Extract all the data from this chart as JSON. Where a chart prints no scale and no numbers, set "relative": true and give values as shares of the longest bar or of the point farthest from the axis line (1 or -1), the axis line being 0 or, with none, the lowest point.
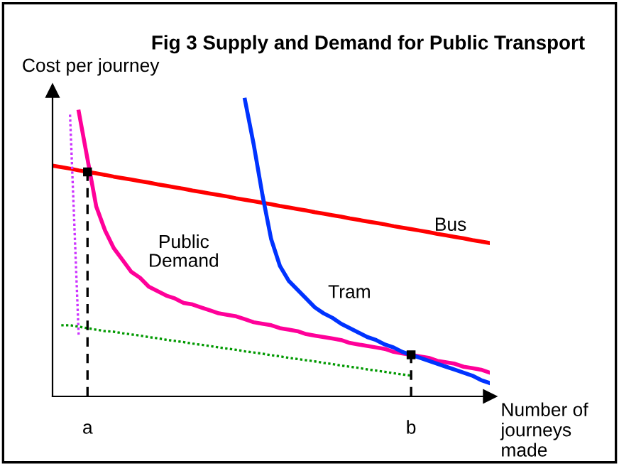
{
  "chart_data": {
    "type": "line",
    "title": "Fig 3 Supply and Demand for Public Transport",
    "xlabel": "Number of journeys made",
    "ylabel": "Cost per journey",
    "relative": true,
    "categories": [
      null,
      null,
      null,
      null,
      "a",
      null,
      null,
      null,
      null,
      null,
      null,
      null,
      null,
      null,
      null,
      null,
      null,
      null,
      null,
      null,
      null,
      null,
      null,
      null,
      null,
      null,
      null,
      null,
      null,
      null,
      null,
      null,
      null,
      null,
      null,
      null,
      null,
      null,
      null,
      null,
      null,
      "b",
      null,
      null,
      null,
      null,
      null,
      null,
      null,
      null,
      null
    ],
    "legend": false,
    "marker": "none",
    "series": [
      {
        "name": "Bus",
        "color": "#ff0000",
        "values": [
          0.778,
          0.773,
          0.768,
          0.762,
          0.757,
          0.752,
          0.747,
          0.741,
          0.736,
          0.731,
          0.726,
          0.721,
          0.715,
          0.71,
          0.705,
          0.7,
          0.694,
          0.689,
          0.684,
          0.679,
          0.674,
          0.668,
          0.663,
          0.658,
          0.653,
          0.648,
          0.642,
          0.637,
          0.632,
          0.627,
          0.621,
          0.616,
          0.611,
          0.606,
          0.6,
          0.595,
          0.59,
          0.585,
          0.58,
          0.574,
          0.569,
          0.564,
          0.559,
          0.554,
          0.548,
          0.543,
          0.538,
          0.533,
          0.527,
          0.522,
          0.517
        ]
      },
      {
        "name": "Public Demand",
        "color": "#ff0099",
        "values": [
          null,
          null,
          null,
          0.96,
          0.8,
          0.64,
          0.56,
          0.5,
          0.46,
          0.42,
          0.4,
          0.37,
          0.355,
          0.34,
          0.33,
          0.315,
          0.31,
          0.3,
          0.29,
          0.28,
          0.275,
          0.27,
          0.26,
          0.25,
          0.245,
          0.24,
          0.23,
          0.225,
          0.22,
          0.21,
          0.205,
          0.2,
          0.195,
          0.19,
          0.18,
          0.175,
          0.17,
          0.165,
          0.16,
          0.15,
          0.145,
          0.14,
          0.135,
          0.13,
          0.12,
          0.115,
          0.11,
          0.1,
          0.095,
          0.09,
          0.08
        ]
      },
      {
        "name": "Tram",
        "color": "#0033ff",
        "values": [
          null,
          null,
          null,
          null,
          null,
          null,
          null,
          null,
          null,
          null,
          null,
          null,
          null,
          null,
          null,
          null,
          null,
          null,
          null,
          null,
          null,
          null,
          1.0,
          0.85,
          0.68,
          0.53,
          0.44,
          0.39,
          0.36,
          0.33,
          0.3,
          0.28,
          0.265,
          0.245,
          0.23,
          0.215,
          0.2,
          0.19,
          0.175,
          0.165,
          0.15,
          0.14,
          0.13,
          0.12,
          0.11,
          0.1,
          0.09,
          0.08,
          0.07,
          0.055,
          0.045
        ]
      },
      {
        "color": "#cc33ff",
        "line_style": "dotted",
        "values": [
          null,
          null,
          0.95,
          0.2,
          null,
          null,
          null,
          null,
          null,
          null,
          null,
          null,
          null,
          null,
          null,
          null,
          null,
          null,
          null,
          null,
          null,
          null,
          null,
          null,
          null,
          null,
          null,
          null,
          null,
          null,
          null,
          null,
          null,
          null,
          null,
          null,
          null,
          null,
          null,
          null,
          null,
          null,
          null,
          null,
          null,
          null,
          null,
          null,
          null,
          null,
          null
        ]
      },
      {
        "color": "#009900",
        "line_style": "dotted",
        "values": [
          null,
          0.24,
          0.24,
          0.235,
          0.23,
          0.225,
          0.22,
          0.218,
          0.213,
          0.209,
          0.205,
          0.2,
          0.196,
          0.191,
          0.187,
          0.183,
          0.178,
          0.174,
          0.17,
          0.165,
          0.161,
          0.157,
          0.152,
          0.148,
          0.144,
          0.139,
          0.135,
          0.13,
          0.126,
          0.122,
          0.118,
          0.113,
          0.109,
          0.104,
          0.1,
          0.096,
          0.091,
          0.087,
          0.083,
          0.078,
          0.074,
          0.07,
          null,
          null,
          null,
          null,
          null,
          null,
          null,
          null,
          null
        ]
      },
      {
        "type": "lollipop",
        "color": "#000000",
        "line_style": "dashed",
        "marker": "square",
        "values": [
          null,
          null,
          null,
          null,
          0.757,
          null,
          null,
          null,
          null,
          null,
          null,
          null,
          null,
          null,
          null,
          null,
          null,
          null,
          null,
          null,
          null,
          null,
          null,
          null,
          null,
          null,
          null,
          null,
          null,
          null,
          null,
          null,
          null,
          null,
          null,
          null,
          null,
          null,
          null,
          null,
          null,
          0.14,
          null,
          null,
          null,
          null,
          null,
          null,
          null,
          null,
          null
        ]
      }
    ]
  }
}
